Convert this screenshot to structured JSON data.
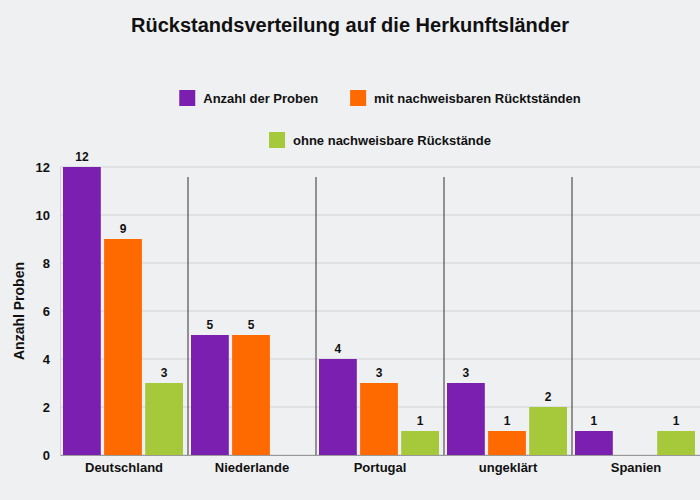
{
  "chart_data": {
    "type": "bar",
    "title": "Rückstandsverteilung auf die Herkunftsländer",
    "y_label": "Anzahl Proben",
    "categories": [
      "Deutschland",
      "Niederlande",
      "Portugal",
      "ungeklärt",
      "Spanien"
    ],
    "series": [
      {
        "name": "Anzahl der Proben",
        "color": "#7b1fb0",
        "values": [
          12,
          5,
          4,
          3,
          1
        ]
      },
      {
        "name": "mit nachweisbaren Rücktständen",
        "color": "#ff6a00",
        "values": [
          9,
          5,
          3,
          1,
          null
        ]
      },
      {
        "name": "ohne nachweisbare Rückstände",
        "color": "#a5c93a",
        "values": [
          3,
          null,
          1,
          2,
          1
        ]
      }
    ],
    "ylim": [
      0,
      12
    ],
    "yticks": [
      0,
      2,
      4,
      6,
      8,
      10,
      12
    ],
    "grid": true,
    "data_labels": true
  }
}
